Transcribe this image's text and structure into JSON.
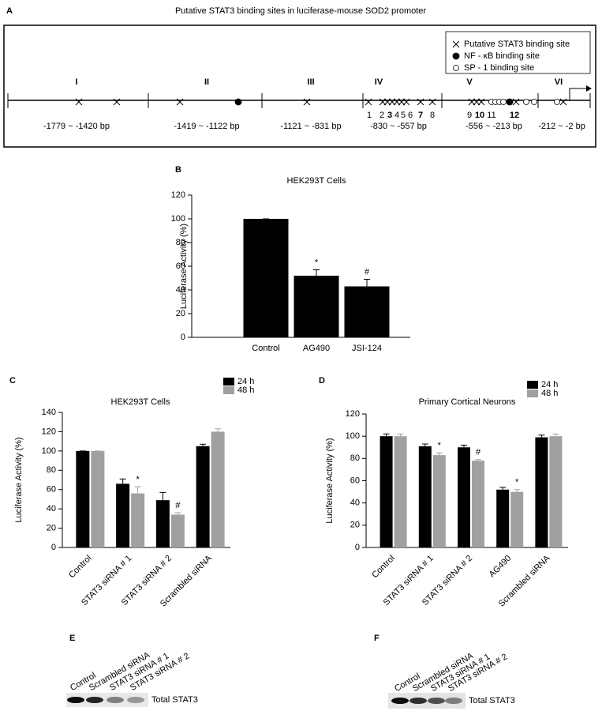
{
  "diagram": {
    "letter": "A",
    "title": "Putative STAT3 binding sites in luciferase-mouse SOD2 promoter",
    "legend": [
      "Putative STAT3 binding site",
      "NF - κB binding site",
      "SP - 1 binding site"
    ],
    "regions": [
      {
        "label": "I",
        "range": "-1779 ~ -1420 bp"
      },
      {
        "label": "II",
        "range": "-1419 ~ -1122 bp"
      },
      {
        "label": "III",
        "range": "-1121 ~ -831 bp"
      },
      {
        "label": "IV",
        "range": "-830 ~ -557 bp"
      },
      {
        "label": "V",
        "range": "-556 ~ -213 bp"
      },
      {
        "label": "VI",
        "range": "-212 ~ -2 bp"
      }
    ],
    "site_numbers": [
      {
        "label": "1",
        "bold": false
      },
      {
        "label": "2",
        "bold": false
      },
      {
        "label": "3",
        "bold": true
      },
      {
        "label": "4",
        "bold": false
      },
      {
        "label": "5",
        "bold": false
      },
      {
        "label": "6",
        "bold": false
      },
      {
        "label": "7",
        "bold": true
      },
      {
        "label": "8",
        "bold": false
      },
      {
        "label": "9",
        "bold": false
      },
      {
        "label": "10",
        "bold": true
      },
      {
        "label": "11",
        "bold": false
      },
      {
        "label": "12",
        "bold": true
      }
    ]
  },
  "chart_data": [
    {
      "type": "bar",
      "panel": "B",
      "title": "HEK293T Cells",
      "ylabel": "Luciferase Activity (%)",
      "categories": [
        "Control",
        "AG490",
        "JSI-124"
      ],
      "values": [
        100,
        52,
        43
      ],
      "errors": [
        0,
        5,
        6
      ],
      "color": "#000000",
      "annotations": [
        {
          "index": 1,
          "text": "*"
        },
        {
          "index": 2,
          "text": "#"
        }
      ],
      "ylim": [
        0,
        120
      ],
      "yticks": [
        0,
        20,
        40,
        60,
        80,
        100,
        120
      ]
    },
    {
      "type": "bar",
      "panel": "C",
      "title": "HEK293T Cells",
      "ylabel": "Luciferase Activity (%)",
      "categories": [
        "Control",
        "STAT3 siRNA # 1",
        "STAT3 siRNA # 2",
        "Scrambled siRNA"
      ],
      "xtick_rotation": -45,
      "series": [
        {
          "name": "24 h",
          "color": "#000000",
          "values": [
            100,
            66,
            49,
            105
          ],
          "errors": [
            0,
            5,
            8,
            2
          ]
        },
        {
          "name": "48 h",
          "color": "#a0a0a0",
          "values": [
            100,
            56,
            34,
            120
          ],
          "errors": [
            0,
            7,
            2,
            3
          ]
        }
      ],
      "annotations": [
        {
          "series": 1,
          "index": 1,
          "text": "*"
        },
        {
          "series": 1,
          "index": 2,
          "text": "#"
        }
      ],
      "legend": "upper right",
      "ylim": [
        0,
        140
      ],
      "yticks": [
        0,
        20,
        40,
        60,
        80,
        100,
        120,
        140
      ]
    },
    {
      "type": "bar",
      "panel": "D",
      "title": "Primary Cortical Neurons",
      "ylabel": "Luciferase Activity (%)",
      "categories": [
        "Control",
        "STAT3 siRNA # 1",
        "STAT3 siRNA # 2",
        "AG490",
        "Scrambled siRNA"
      ],
      "xtick_rotation": -45,
      "series": [
        {
          "name": "24 h",
          "color": "#000000",
          "values": [
            100,
            91,
            90,
            52,
            99
          ],
          "errors": [
            2,
            2,
            2,
            2,
            2
          ]
        },
        {
          "name": "48 h",
          "color": "#a0a0a0",
          "values": [
            100,
            83,
            78,
            50,
            100
          ],
          "errors": [
            2,
            2,
            1,
            2,
            2
          ]
        }
      ],
      "annotations": [
        {
          "series": 1,
          "index": 1,
          "text": "*"
        },
        {
          "series": 1,
          "index": 2,
          "text": "#"
        },
        {
          "series": 1,
          "index": 3,
          "text": "*"
        }
      ],
      "legend": "upper right",
      "ylim": [
        0,
        120
      ],
      "yticks": [
        0,
        20,
        40,
        60,
        80,
        100,
        120
      ]
    }
  ],
  "blots": [
    {
      "letter": "E",
      "lanes": [
        "Control",
        "Scrambled siRNA",
        "STAT3 siRNA # 1",
        "STAT3 siRNA # 2"
      ],
      "label": "Total STAT3"
    },
    {
      "letter": "F",
      "lanes": [
        "Control",
        "Scrambled siRNA",
        "STAT3 siRNA # 1",
        "STAT3 siRNA # 2"
      ],
      "label": "Total STAT3"
    }
  ]
}
